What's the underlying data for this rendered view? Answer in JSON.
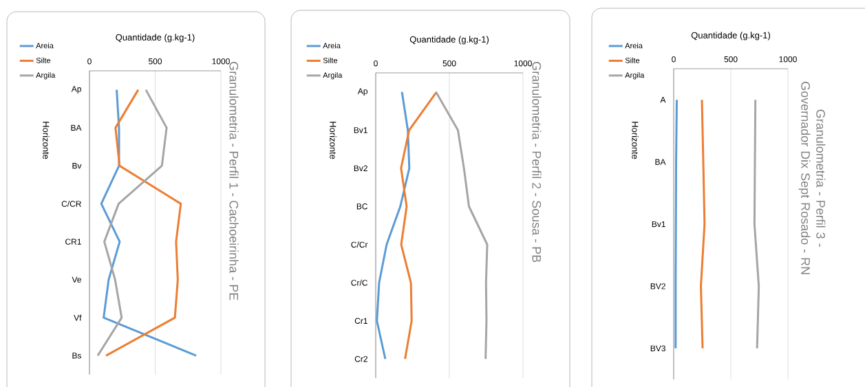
{
  "chart_data": [
    {
      "type": "line",
      "orientation": "horizontal",
      "title": "Granulometria - Perfil 1 - Cachoeirinha - PE",
      "xlabel": "Quantidade (g.kg-1)",
      "ylabel": "Horizonte",
      "categories": [
        "Ap",
        "BA",
        "Bv",
        "C/CR",
        "CR1",
        "Ve",
        "Vf",
        "Bs"
      ],
      "xlim": [
        0,
        1000
      ],
      "xticks": [
        0,
        500,
        1000
      ],
      "grid": "x",
      "legend": "left",
      "series": [
        {
          "name": "Areia",
          "color": "#5b9bd5",
          "values": [
            207,
            225,
            225,
            90,
            230,
            146,
            108,
            812
          ]
        },
        {
          "name": "Silte",
          "color": "#ed7d31",
          "values": [
            371,
            198,
            229,
            695,
            659,
            672,
            650,
            126
          ]
        },
        {
          "name": "Argila",
          "color": "#a5a5a5",
          "values": [
            429,
            587,
            551,
            222,
            113,
            195,
            245,
            63
          ]
        }
      ]
    },
    {
      "type": "line",
      "orientation": "horizontal",
      "title": "Granulometria - Perfil 2 - Sousa - PB",
      "xlabel": "Quantidade (g.kg-1)",
      "ylabel": "Horizonte",
      "categories": [
        "Ap",
        "Bv1",
        "Bv2",
        "BC",
        "C/Cr",
        "Cr/C",
        "Cr1",
        "Cr2"
      ],
      "xlim": [
        0,
        1000
      ],
      "xticks": [
        0,
        500,
        1000
      ],
      "grid": "x",
      "legend": "left",
      "series": [
        {
          "name": "Areia",
          "color": "#5b9bd5",
          "values": [
            178,
            218,
            228,
            167,
            74,
            23,
            8,
            65
          ]
        },
        {
          "name": "Silte",
          "color": "#ed7d31",
          "values": [
            413,
            227,
            172,
            210,
            173,
            239,
            244,
            199
          ]
        },
        {
          "name": "Argila",
          "color": "#a5a5a5",
          "values": [
            409,
            558,
            599,
            633,
            757,
            749,
            752,
            746
          ]
        }
      ]
    },
    {
      "type": "line",
      "orientation": "horizontal",
      "title": "Granulometria - Perfil 3 - Governador Dix Sept Rosado - RN",
      "xlabel": "Quantidade (g.kg-1)",
      "ylabel": "Horizonte",
      "categories": [
        "A",
        "BA",
        "Bv1",
        "BV2",
        "BV3"
      ],
      "xlim": [
        0,
        1000
      ],
      "xticks": [
        0,
        500,
        1000
      ],
      "grid": "x",
      "legend": "left",
      "series": [
        {
          "name": "Areia",
          "color": "#5b9bd5",
          "values": [
            27,
            21,
            19,
            17,
            17
          ]
        },
        {
          "name": "Silte",
          "color": "#ed7d31",
          "values": [
            247,
            259,
            270,
            238,
            253
          ]
        },
        {
          "name": "Argila",
          "color": "#a5a5a5",
          "values": [
            715,
            711,
            707,
            745,
            730
          ]
        }
      ]
    }
  ]
}
